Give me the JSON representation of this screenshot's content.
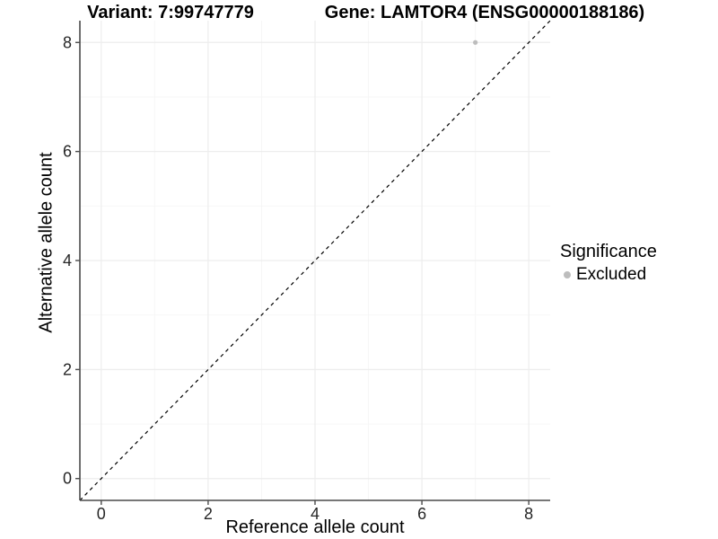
{
  "chart_data": {
    "type": "scatter",
    "titles": {
      "left": "Variant: 7:99747779",
      "right": "Gene: LAMTOR4 (ENSG00000188186)"
    },
    "xlabel": "Reference allele count",
    "ylabel": "Alternative allele count",
    "xlim": [
      -0.4,
      8.4
    ],
    "ylim": [
      -0.4,
      8.4
    ],
    "x_ticks": [
      0,
      2,
      4,
      6,
      8
    ],
    "x_minor_ticks": [
      1,
      3,
      5,
      7
    ],
    "y_ticks": [
      0,
      2,
      4,
      6,
      8
    ],
    "y_minor_ticks": [
      1,
      3,
      5,
      7
    ],
    "grid": "major-and-minor",
    "reference_line": {
      "kind": "identity",
      "style": "dashed",
      "color": "#000000"
    },
    "series": [
      {
        "name": "Excluded",
        "color": "#bdbdbd",
        "points": [
          [
            7,
            8
          ]
        ]
      }
    ],
    "legend": {
      "title": "Significance",
      "position": "right",
      "items": [
        {
          "label": "Excluded",
          "color": "#bdbdbd",
          "marker": "circle"
        }
      ]
    }
  },
  "colors": {
    "background": "#ffffff",
    "grid_major": "#ededed",
    "grid_minor": "#f5f5f5",
    "axis_line": "#4a4a4a",
    "tick_text": "#262626"
  }
}
